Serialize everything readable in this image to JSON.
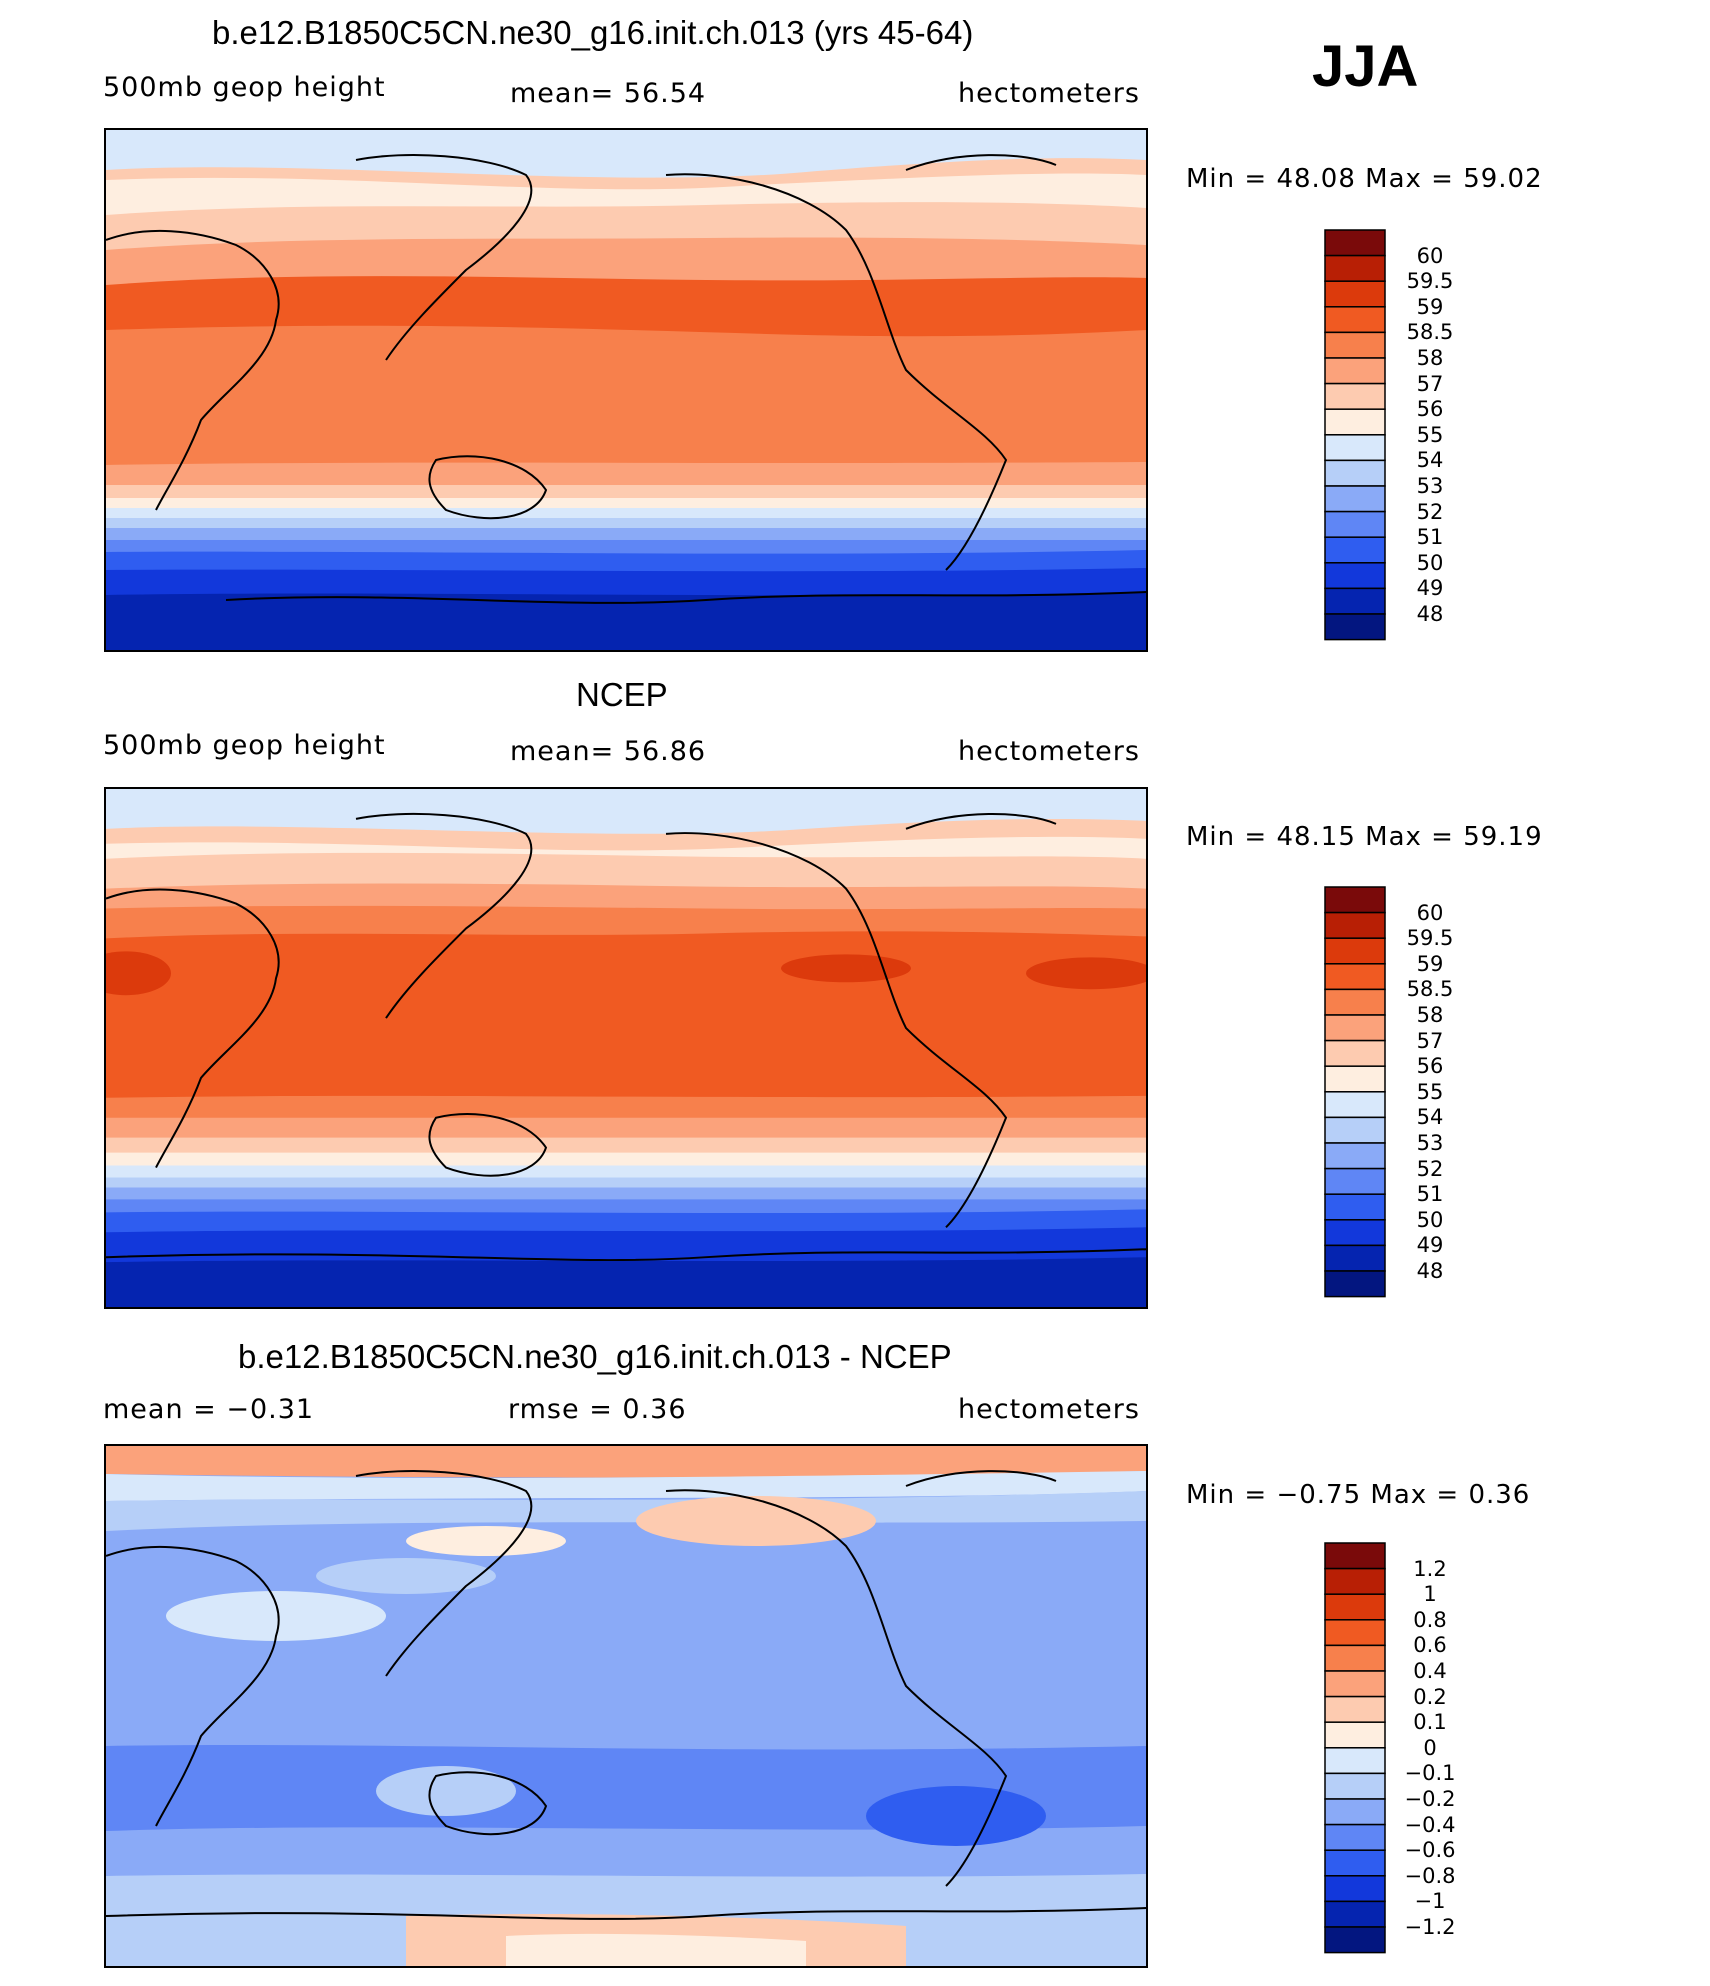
{
  "season": "JJA",
  "panels": [
    {
      "title": "b.e12.B1850C5CN.ne30_g16.init.ch.013 (yrs 45-64)",
      "left_label": "500mb  geop  height",
      "center_label": "mean=   56.54",
      "units": "hectometers",
      "min_max": "Min  =    48.08  Max  =    59.02",
      "colorbar": {
        "labels": [
          "60",
          "59.5",
          "59",
          "58.5",
          "58",
          "57",
          "56",
          "55",
          "54",
          "53",
          "52",
          "51",
          "50",
          "49",
          "48"
        ],
        "colors": [
          "#7a0a0a",
          "#b81f05",
          "#dc3a0c",
          "#f05a22",
          "#f7804c",
          "#fba27b",
          "#fdcbb0",
          "#feeee0",
          "#d8e8fb",
          "#b6cff8",
          "#8aaaf7",
          "#5f86f5",
          "#2f5df0",
          "#1238db",
          "#0524b0",
          "#031680"
        ]
      }
    },
    {
      "title": "NCEP",
      "left_label": "500mb  geop  height",
      "center_label": "mean=   56.86",
      "units": "hectometers",
      "min_max": "Min  =    48.15  Max  =    59.19",
      "colorbar": {
        "labels": [
          "60",
          "59.5",
          "59",
          "58.5",
          "58",
          "57",
          "56",
          "55",
          "54",
          "53",
          "52",
          "51",
          "50",
          "49",
          "48"
        ],
        "colors": [
          "#7a0a0a",
          "#b81f05",
          "#dc3a0c",
          "#f05a22",
          "#f7804c",
          "#fba27b",
          "#fdcbb0",
          "#feeee0",
          "#d8e8fb",
          "#b6cff8",
          "#8aaaf7",
          "#5f86f5",
          "#2f5df0",
          "#1238db",
          "#0524b0",
          "#031680"
        ]
      }
    },
    {
      "title": "b.e12.B1850C5CN.ne30_g16.init.ch.013 - NCEP",
      "left_label": "mean  =    −0.31",
      "center_label": "rmse  =     0.36",
      "units": "hectometers",
      "min_max": "Min  =    −0.75  Max  =     0.36",
      "colorbar": {
        "labels": [
          "1.2",
          "1",
          "0.8",
          "0.6",
          "0.4",
          "0.2",
          "0.1",
          "0",
          "−0.1",
          "−0.2",
          "−0.4",
          "−0.6",
          "−0.8",
          "−1",
          "−1.2"
        ],
        "colors": [
          "#7a0a0a",
          "#b81f05",
          "#dc3a0c",
          "#f05a22",
          "#f7804c",
          "#fba27b",
          "#fdcbb0",
          "#feeee0",
          "#d8e8fb",
          "#b6cff8",
          "#8aaaf7",
          "#5f86f5",
          "#2f5df0",
          "#1238db",
          "#0524b0",
          "#031680"
        ]
      }
    }
  ]
}
